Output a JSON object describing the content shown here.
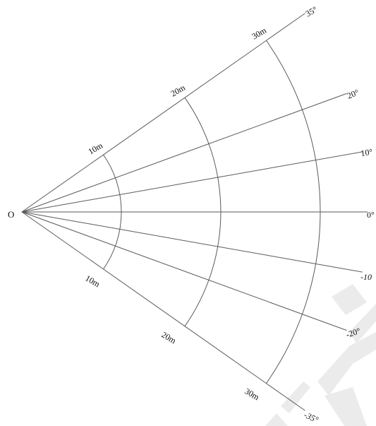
{
  "diagram": {
    "origin_label": "O",
    "rays": [
      {
        "angle_deg": 35,
        "label": "35°"
      },
      {
        "angle_deg": 20,
        "label": "20°"
      },
      {
        "angle_deg": 10,
        "label": "10°"
      },
      {
        "angle_deg": 0,
        "label": "0°"
      },
      {
        "angle_deg": -10,
        "label": "-10"
      },
      {
        "angle_deg": -20,
        "label": "-20°"
      },
      {
        "angle_deg": -35,
        "label": "-35°"
      }
    ],
    "arcs": [
      {
        "radius_m": 10,
        "upper_label": "10m",
        "lower_label": "10m"
      },
      {
        "radius_m": 20,
        "upper_label": "20m",
        "lower_label": "20m"
      },
      {
        "radius_m": 30,
        "upper_label": "30m",
        "lower_label": "30m"
      }
    ]
  }
}
